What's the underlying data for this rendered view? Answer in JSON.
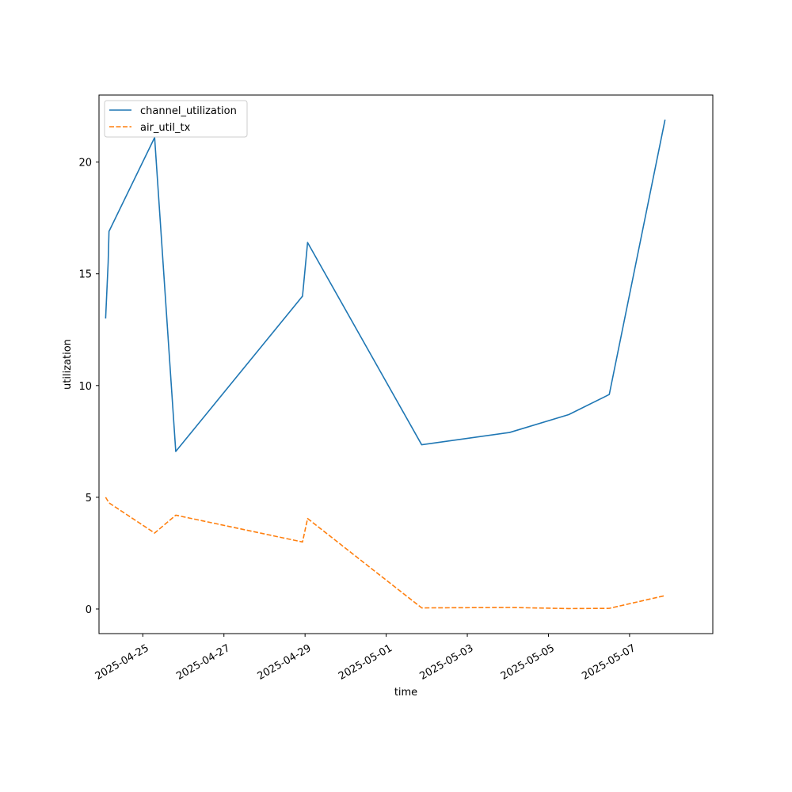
{
  "chart_data": {
    "type": "line",
    "title": "",
    "xlabel": "time",
    "ylabel": "utilization",
    "x_ticks": [
      "2025-04-25",
      "2025-04-27",
      "2025-04-29",
      "2025-05-01",
      "2025-05-03",
      "2025-05-05",
      "2025-05-07"
    ],
    "y_ticks": [
      0,
      5,
      10,
      15,
      20
    ],
    "xlim": [
      "2025-04-23T22:05",
      "2025-05-09T01:15"
    ],
    "ylim": [
      -1.1,
      23.0
    ],
    "grid": false,
    "legend_position": "top-left",
    "series": [
      {
        "name": "channel_utilization",
        "color": "#1f77b4",
        "linestyle": "solid",
        "points": [
          {
            "x": "2025-04-24T02:00",
            "y": 13.0
          },
          {
            "x": "2025-04-24T03:30",
            "y": 15.5
          },
          {
            "x": "2025-04-24T04:00",
            "y": 16.9
          },
          {
            "x": "2025-04-25T07:00",
            "y": 21.1
          },
          {
            "x": "2025-04-25T19:30",
            "y": 7.05
          },
          {
            "x": "2025-04-28T22:30",
            "y": 14.0
          },
          {
            "x": "2025-04-29T01:30",
            "y": 16.4
          },
          {
            "x": "2025-05-01T21:00",
            "y": 7.35
          },
          {
            "x": "2025-05-04T01:00",
            "y": 7.9
          },
          {
            "x": "2025-05-05T12:00",
            "y": 8.7
          },
          {
            "x": "2025-05-06T12:00",
            "y": 9.6
          },
          {
            "x": "2025-05-07T21:00",
            "y": 21.9
          }
        ]
      },
      {
        "name": "air_util_tx",
        "color": "#ff7f0e",
        "linestyle": "dashed",
        "points": [
          {
            "x": "2025-04-24T02:00",
            "y": 5.0
          },
          {
            "x": "2025-04-24T04:00",
            "y": 4.75
          },
          {
            "x": "2025-04-25T07:00",
            "y": 3.4
          },
          {
            "x": "2025-04-25T19:30",
            "y": 4.2
          },
          {
            "x": "2025-04-28T22:30",
            "y": 3.0
          },
          {
            "x": "2025-04-29T01:30",
            "y": 4.05
          },
          {
            "x": "2025-05-01T21:00",
            "y": 0.05
          },
          {
            "x": "2025-05-04T01:00",
            "y": 0.07
          },
          {
            "x": "2025-05-05T12:00",
            "y": 0.02
          },
          {
            "x": "2025-05-06T12:00",
            "y": 0.03
          },
          {
            "x": "2025-05-07T21:00",
            "y": 0.6
          }
        ]
      }
    ]
  }
}
